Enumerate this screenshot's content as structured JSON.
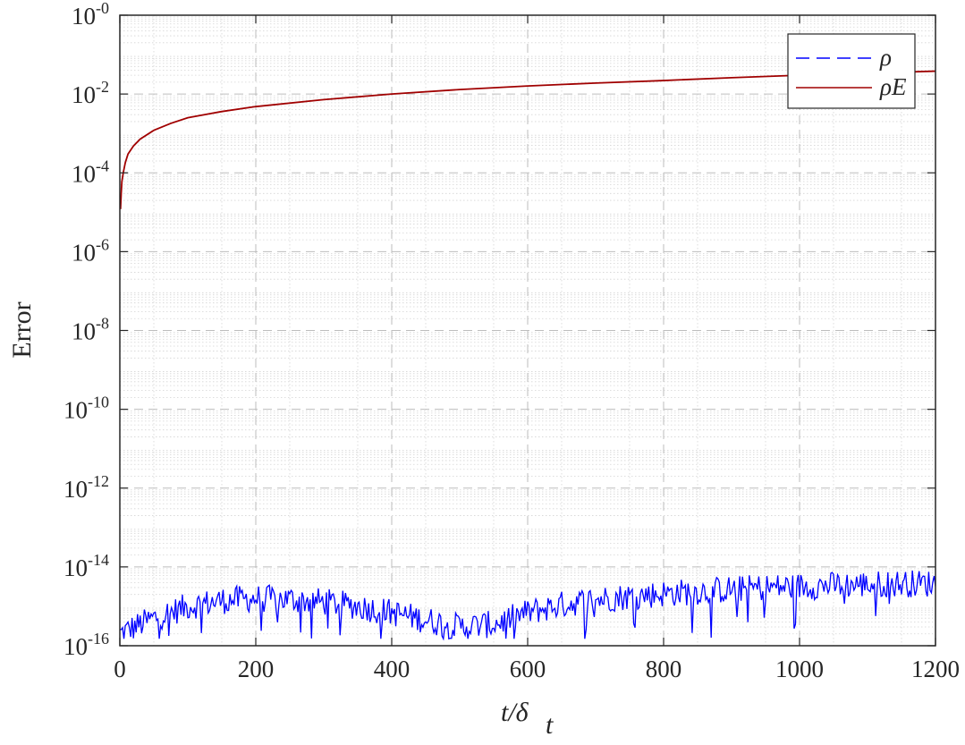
{
  "chart_data": {
    "type": "line",
    "title": "",
    "xlabel": {
      "main": "t/δ",
      "subscript": "t"
    },
    "ylabel": "Error",
    "xlim": [
      0,
      1200
    ],
    "ylim": [
      1e-16,
      1
    ],
    "yscale": "log",
    "xticks": [
      0,
      200,
      400,
      600,
      800,
      1000,
      1200
    ],
    "yticks": [
      {
        "base": "10",
        "exp": "-0",
        "value": 1
      },
      {
        "base": "10",
        "exp": "-2",
        "value": 0.01
      },
      {
        "base": "10",
        "exp": "-4",
        "value": 0.0001
      },
      {
        "base": "10",
        "exp": "-6",
        "value": 1e-06
      },
      {
        "base": "10",
        "exp": "-8",
        "value": 1e-08
      },
      {
        "base": "10",
        "exp": "-10",
        "value": 1e-10
      },
      {
        "base": "10",
        "exp": "-12",
        "value": 1e-12
      },
      {
        "base": "10",
        "exp": "-14",
        "value": 1e-14
      },
      {
        "base": "10",
        "exp": "-16",
        "value": 1e-16
      }
    ],
    "grid": true,
    "minor_grid": true,
    "legend_position": "top-right",
    "series": [
      {
        "name": "ρ",
        "style": "dashed",
        "color": "#0000ff",
        "description_points": {
          "x": [
            0,
            50,
            100,
            150,
            200,
            250,
            300,
            350,
            400,
            450,
            500,
            550,
            600,
            650,
            700,
            750,
            800,
            850,
            900,
            950,
            1000,
            1050,
            1100,
            1150,
            1200
          ],
          "y": [
            2e-16,
            5e-16,
            1e-15,
            1.4e-15,
            1.6e-15,
            1.5e-15,
            1.3e-15,
            1e-15,
            7e-16,
            4.5e-16,
            3e-16,
            3.5e-16,
            7e-16,
            1.1e-15,
            1.5e-15,
            1.8e-15,
            2.1e-15,
            2.4e-15,
            2.7e-15,
            3e-15,
            3.2e-15,
            3.4e-15,
            3.6e-15,
            3.8e-15,
            3.8e-15
          ]
        }
      },
      {
        "name": "ρE",
        "style": "solid",
        "color": "#a00000",
        "x": [
          1,
          2,
          3,
          5,
          8,
          12,
          20,
          30,
          50,
          75,
          100,
          150,
          200,
          300,
          400,
          500,
          600,
          700,
          800,
          900,
          1000,
          1100,
          1200
        ],
        "y": [
          1.2e-05,
          3e-05,
          6e-05,
          0.0001,
          0.00018,
          0.0003,
          0.00048,
          0.00072,
          0.0012,
          0.0018,
          0.0025,
          0.0036,
          0.0048,
          0.0072,
          0.01,
          0.013,
          0.016,
          0.019,
          0.022,
          0.026,
          0.03,
          0.034,
          0.038
        ]
      }
    ]
  }
}
